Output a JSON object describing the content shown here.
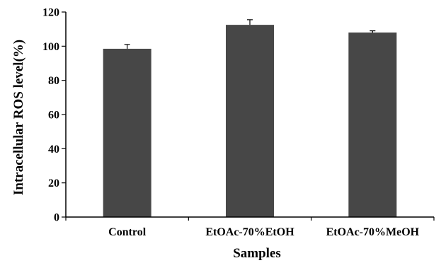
{
  "chart_data": {
    "type": "bar",
    "title": "",
    "xlabel": "Samples",
    "ylabel": "Intracellular ROS level(%)",
    "categories": [
      "Control",
      "EtOAc-70%EtOH",
      "EtOAc-70%MeOH"
    ],
    "values": [
      98.5,
      112.5,
      108
    ],
    "errors": [
      2.5,
      3,
      1
    ],
    "ylim": [
      0,
      120
    ],
    "yticks": [
      0,
      20,
      40,
      60,
      80,
      100,
      120
    ],
    "grid": false,
    "legend": "none",
    "bar_color": "#474747"
  }
}
